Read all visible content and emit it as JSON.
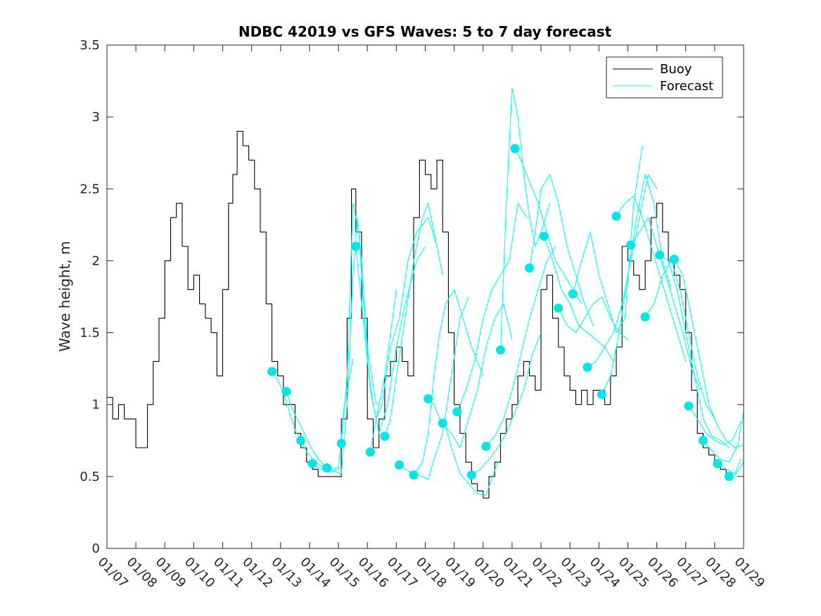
{
  "chart_data": {
    "type": "line",
    "title": "NDBC 42019 vs GFS Waves: 5 to 7 day forecast",
    "xlabel": "",
    "ylabel": "Wave height, m",
    "xlim": [
      7,
      29
    ],
    "ylim": [
      0,
      3.5
    ],
    "yticks": [
      0,
      0.5,
      1,
      1.5,
      2,
      2.5,
      3,
      3.5
    ],
    "ytick_labels": [
      "0",
      "0.5",
      "1",
      "1.5",
      "2",
      "2.5",
      "3",
      "3.5"
    ],
    "xticks": [
      7,
      8,
      9,
      10,
      11,
      12,
      13,
      14,
      15,
      16,
      17,
      18,
      19,
      20,
      21,
      22,
      23,
      24,
      25,
      26,
      27,
      28,
      29
    ],
    "xtick_labels": [
      "01/07",
      "01/08",
      "01/09",
      "01/10",
      "01/11",
      "01/12",
      "01/13",
      "01/14",
      "01/15",
      "01/16",
      "01/17",
      "01/18",
      "01/19",
      "01/20",
      "01/21",
      "01/22",
      "01/23",
      "01/24",
      "01/25",
      "01/26",
      "01/27",
      "01/28",
      "01/29"
    ],
    "legend": {
      "location": "top-right",
      "entries": [
        "Buoy",
        "Forecast"
      ]
    },
    "colors": {
      "buoy": "#000000",
      "forecast": "#00ffff",
      "marker": "#00e5e5",
      "axis": "#262626"
    },
    "series": [
      {
        "name": "Buoy",
        "x": [
          7.0,
          7.2,
          7.4,
          7.6,
          7.8,
          8.0,
          8.2,
          8.4,
          8.6,
          8.8,
          9.0,
          9.2,
          9.4,
          9.6,
          9.8,
          10.0,
          10.2,
          10.4,
          10.6,
          10.8,
          11.0,
          11.2,
          11.35,
          11.5,
          11.7,
          11.9,
          12.1,
          12.3,
          12.5,
          12.7,
          12.9,
          13.1,
          13.3,
          13.5,
          13.7,
          13.9,
          14.1,
          14.3,
          14.5,
          14.7,
          14.9,
          15.1,
          15.3,
          15.45,
          15.6,
          15.8,
          16.0,
          16.2,
          16.4,
          16.6,
          16.8,
          17.0,
          17.2,
          17.4,
          17.6,
          17.8,
          18.0,
          18.2,
          18.4,
          18.6,
          18.8,
          19.0,
          19.2,
          19.4,
          19.6,
          19.8,
          20.0,
          20.2,
          20.4,
          20.6,
          20.8,
          21.0,
          21.2,
          21.4,
          21.6,
          21.8,
          22.0,
          22.2,
          22.4,
          22.6,
          22.8,
          23.0,
          23.2,
          23.4,
          23.6,
          23.8,
          24.0,
          24.2,
          24.4,
          24.6,
          24.8,
          25.0,
          25.2,
          25.4,
          25.6,
          25.8,
          26.0,
          26.2,
          26.4,
          26.6,
          26.8,
          27.0,
          27.2,
          27.4,
          27.6,
          27.8,
          28.0,
          28.2,
          28.4
        ],
        "y": [
          1.05,
          0.9,
          1.0,
          0.9,
          0.9,
          0.7,
          0.7,
          1.0,
          1.3,
          1.6,
          2.0,
          2.3,
          2.4,
          2.1,
          1.8,
          1.9,
          1.7,
          1.6,
          1.5,
          1.2,
          1.8,
          2.4,
          2.6,
          2.9,
          2.8,
          2.7,
          2.5,
          2.2,
          1.7,
          1.3,
          1.2,
          1.0,
          1.0,
          0.8,
          0.7,
          0.6,
          0.55,
          0.5,
          0.5,
          0.5,
          0.5,
          0.9,
          1.6,
          2.5,
          2.2,
          1.6,
          0.9,
          0.7,
          0.9,
          1.2,
          1.3,
          1.4,
          1.3,
          1.2,
          2.3,
          2.7,
          2.6,
          2.5,
          2.7,
          2.2,
          1.5,
          1.0,
          0.8,
          0.6,
          0.45,
          0.4,
          0.35,
          0.5,
          0.6,
          0.8,
          0.9,
          1.0,
          1.2,
          1.3,
          1.2,
          1.1,
          1.8,
          1.9,
          1.6,
          1.4,
          1.2,
          1.1,
          1.0,
          1.1,
          1.0,
          1.1,
          1.1,
          1.0,
          1.2,
          1.4,
          2.1,
          2.0,
          1.9,
          1.8,
          2.0,
          2.3,
          2.4,
          2.2,
          2.0,
          1.9,
          1.8,
          1.5,
          1.1,
          0.8,
          0.7,
          0.65,
          0.6,
          0.55,
          0.5
        ]
      },
      {
        "name": "Forecast",
        "x": [
          12.7,
          12.9,
          13.1,
          13.3,
          13.5,
          13.8
        ],
        "y": [
          1.23,
          1.17,
          1.08,
          0.95,
          0.82,
          0.72
        ]
      },
      {
        "name": "Forecast",
        "x": [
          13.2,
          13.4,
          13.7,
          14.0,
          14.3,
          14.6
        ],
        "y": [
          1.09,
          0.97,
          0.85,
          0.72,
          0.62,
          0.56
        ]
      },
      {
        "name": "Forecast",
        "x": [
          13.7,
          13.9,
          14.2,
          14.5,
          14.8,
          15.1
        ],
        "y": [
          0.75,
          0.67,
          0.6,
          0.56,
          0.55,
          0.57
        ]
      },
      {
        "name": "Forecast",
        "x": [
          14.1,
          14.4,
          14.7,
          15.0,
          15.2,
          15.5
        ],
        "y": [
          0.59,
          0.55,
          0.53,
          0.55,
          1.0,
          1.32
        ]
      },
      {
        "name": "Forecast",
        "x": [
          14.6,
          14.8,
          15.1,
          15.3,
          15.5,
          15.65,
          15.8,
          16.0,
          16.3
        ],
        "y": [
          0.56,
          0.54,
          0.52,
          1.0,
          1.9,
          2.3,
          2.0,
          1.4,
          1.0
        ]
      },
      {
        "name": "Forecast",
        "x": [
          15.1,
          15.3,
          15.5,
          15.7,
          15.9,
          16.1,
          16.3,
          16.6,
          17.0
        ],
        "y": [
          0.73,
          1.2,
          2.4,
          2.2,
          1.6,
          1.1,
          0.9,
          1.2,
          1.8
        ]
      },
      {
        "name": "Forecast",
        "x": [
          15.6,
          15.8,
          16.0,
          16.2,
          16.4,
          16.7,
          17.0,
          17.3,
          17.7,
          18.0
        ],
        "y": [
          2.1,
          1.7,
          1.3,
          1.0,
          0.8,
          1.0,
          1.4,
          1.7,
          2.0,
          2.1
        ]
      },
      {
        "name": "Forecast",
        "x": [
          16.1,
          16.3,
          16.5,
          16.8,
          17.1,
          17.4,
          17.7,
          18.1,
          18.4
        ],
        "y": [
          0.67,
          0.9,
          1.0,
          1.4,
          1.6,
          2.0,
          2.2,
          2.3,
          2.1
        ]
      },
      {
        "name": "Forecast",
        "x": [
          16.6,
          16.8,
          17.0,
          17.3,
          17.6,
          17.9,
          18.1,
          18.3,
          18.6
        ],
        "y": [
          0.78,
          0.9,
          1.2,
          1.6,
          2.0,
          2.3,
          2.4,
          2.2,
          1.9
        ]
      },
      {
        "name": "Forecast",
        "x": [
          17.1,
          17.3,
          17.6,
          17.9,
          18.1,
          18.3,
          18.6,
          18.9,
          19.2,
          19.5
        ],
        "y": [
          0.58,
          0.55,
          0.52,
          0.5,
          0.48,
          0.62,
          0.8,
          1.2,
          1.6,
          1.75
        ]
      },
      {
        "name": "Forecast",
        "x": [
          17.6,
          17.9,
          18.1,
          18.3,
          18.5,
          18.7,
          19.0,
          19.3,
          19.6,
          20.0
        ],
        "y": [
          0.51,
          0.6,
          0.8,
          1.2,
          1.5,
          1.7,
          1.8,
          1.6,
          1.4,
          1.2
        ]
      },
      {
        "name": "Forecast",
        "x": [
          18.1,
          18.3,
          18.5,
          18.7,
          18.9,
          19.2,
          19.5,
          19.8,
          20.1,
          20.5
        ],
        "y": [
          1.04,
          1.0,
          0.9,
          0.85,
          0.7,
          0.52,
          0.45,
          0.38,
          0.37,
          0.6
        ]
      },
      {
        "name": "Forecast",
        "x": [
          18.6,
          18.9,
          19.2,
          19.5,
          19.8,
          20.1,
          20.4,
          20.7,
          21.0
        ],
        "y": [
          0.87,
          0.8,
          0.7,
          0.9,
          1.1,
          1.4,
          1.6,
          1.7,
          1.45
        ]
      },
      {
        "name": "Forecast",
        "x": [
          19.1,
          19.4,
          19.7,
          20.0,
          20.3,
          20.6,
          20.9,
          21.2,
          21.5
        ],
        "y": [
          0.95,
          1.1,
          1.3,
          1.6,
          1.8,
          1.9,
          2.0,
          2.4,
          2.3
        ]
      },
      {
        "name": "Forecast",
        "x": [
          19.6,
          19.9,
          20.2,
          20.5,
          20.8,
          21.1,
          21.4,
          21.7,
          22.0
        ],
        "y": [
          0.51,
          0.55,
          0.62,
          0.7,
          0.8,
          0.95,
          1.1,
          1.35,
          1.5
        ]
      },
      {
        "name": "Forecast",
        "x": [
          20.1,
          20.4,
          20.7,
          21.0,
          21.3,
          21.6,
          21.9,
          22.2,
          22.5
        ],
        "y": [
          0.71,
          0.78,
          0.9,
          1.1,
          1.35,
          1.6,
          1.8,
          2.0,
          2.1
        ]
      },
      {
        "name": "Forecast",
        "x": [
          20.6,
          20.8,
          21.0,
          21.2,
          21.4,
          21.6,
          21.8,
          22.0,
          22.3
        ],
        "y": [
          1.38,
          2.4,
          3.2,
          3.0,
          2.6,
          2.3,
          2.1,
          2.2,
          2.4
        ]
      },
      {
        "name": "Forecast",
        "x": [
          21.1,
          21.3,
          21.6,
          21.9,
          22.2,
          22.5,
          22.8,
          23.1,
          23.4
        ],
        "y": [
          2.78,
          2.7,
          2.55,
          2.4,
          2.2,
          2.0,
          1.9,
          1.8,
          1.7
        ]
      },
      {
        "name": "Forecast",
        "x": [
          21.6,
          21.8,
          22.0,
          22.3,
          22.6,
          22.9,
          23.2,
          23.5,
          23.8
        ],
        "y": [
          1.95,
          2.2,
          2.5,
          2.6,
          2.4,
          2.1,
          1.9,
          1.7,
          1.55
        ]
      },
      {
        "name": "Forecast",
        "x": [
          22.1,
          22.4,
          22.7,
          23.0,
          23.3,
          23.6,
          23.9,
          24.2,
          24.5
        ],
        "y": [
          2.17,
          2.0,
          1.8,
          1.7,
          1.55,
          1.5,
          1.45,
          1.4,
          1.3
        ]
      },
      {
        "name": "Forecast",
        "x": [
          22.6,
          22.9,
          23.2,
          23.5,
          23.8,
          24.1,
          24.4,
          24.7,
          25.0
        ],
        "y": [
          1.67,
          1.55,
          1.5,
          1.6,
          1.7,
          1.75,
          1.6,
          1.5,
          1.45
        ]
      },
      {
        "name": "Forecast",
        "x": [
          23.1,
          23.4,
          23.7,
          24.0,
          24.3,
          24.6,
          24.9,
          25.2,
          25.5
        ],
        "y": [
          1.77,
          2.0,
          2.2,
          1.9,
          1.7,
          1.5,
          1.6,
          2.4,
          2.8
        ]
      },
      {
        "name": "Forecast",
        "x": [
          23.6,
          23.9,
          24.2,
          24.5,
          24.8,
          25.1,
          25.4,
          25.7,
          26.0
        ],
        "y": [
          1.26,
          1.3,
          1.4,
          1.5,
          1.7,
          2.0,
          2.3,
          2.6,
          2.5
        ]
      },
      {
        "name": "Forecast",
        "x": [
          24.1,
          24.4,
          24.7,
          25.0,
          25.3,
          25.6,
          25.9,
          26.2,
          26.5
        ],
        "y": [
          1.07,
          1.2,
          1.5,
          1.9,
          2.3,
          2.6,
          2.4,
          2.0,
          1.8
        ]
      },
      {
        "name": "Forecast",
        "x": [
          24.6,
          24.9,
          25.2,
          25.5,
          25.8,
          26.1,
          26.4,
          26.7,
          27.0
        ],
        "y": [
          2.31,
          2.4,
          2.45,
          2.3,
          2.1,
          1.9,
          1.7,
          1.5,
          1.3
        ]
      },
      {
        "name": "Forecast",
        "x": [
          25.1,
          25.4,
          25.7,
          26.0,
          26.3,
          26.6,
          26.9,
          27.2,
          27.5
        ],
        "y": [
          2.11,
          2.2,
          2.3,
          2.1,
          1.9,
          1.7,
          1.5,
          1.25,
          1.1
        ]
      },
      {
        "name": "Forecast",
        "x": [
          25.6,
          25.9,
          26.2,
          26.5,
          26.8,
          27.1,
          27.4,
          27.7,
          28.0
        ],
        "y": [
          1.61,
          1.7,
          1.9,
          2.0,
          1.8,
          1.5,
          1.2,
          1.0,
          0.9
        ]
      },
      {
        "name": "Forecast",
        "x": [
          26.1,
          26.4,
          26.7,
          27.0,
          27.3,
          27.6,
          27.9,
          28.2,
          28.5
        ],
        "y": [
          2.04,
          2.0,
          1.8,
          1.5,
          1.2,
          0.9,
          0.78,
          0.75,
          0.7
        ]
      },
      {
        "name": "Forecast",
        "x": [
          26.6,
          26.9,
          27.2,
          27.5,
          27.8,
          28.1,
          28.4,
          28.7,
          29.0
        ],
        "y": [
          2.01,
          1.9,
          1.6,
          1.3,
          1.0,
          0.85,
          0.75,
          0.7,
          0.72
        ]
      },
      {
        "name": "Forecast",
        "x": [
          27.1,
          27.4,
          27.7,
          28.0,
          28.3,
          28.6,
          28.9
        ],
        "y": [
          0.99,
          0.9,
          0.8,
          0.75,
          0.72,
          0.75,
          0.88
        ]
      },
      {
        "name": "Forecast",
        "x": [
          27.6,
          27.9,
          28.2,
          28.5,
          28.8,
          29.0
        ],
        "y": [
          0.75,
          0.68,
          0.62,
          0.6,
          0.72,
          0.95
        ]
      },
      {
        "name": "Forecast",
        "x": [
          28.1,
          28.4,
          28.7,
          28.9
        ],
        "y": [
          0.59,
          0.55,
          0.52,
          0.62
        ]
      },
      {
        "name": "Forecast",
        "x": [
          28.5,
          28.7,
          28.85,
          29.0
        ],
        "y": [
          0.5,
          0.51,
          0.55,
          0.6
        ]
      }
    ],
    "markers": {
      "name": "Forecast start",
      "x": [
        12.7,
        13.2,
        13.7,
        14.1,
        14.6,
        15.1,
        15.6,
        16.1,
        16.6,
        17.1,
        17.6,
        18.1,
        18.6,
        19.1,
        19.6,
        20.1,
        20.6,
        21.1,
        21.6,
        22.1,
        22.6,
        23.1,
        23.6,
        24.1,
        24.6,
        25.1,
        25.6,
        26.1,
        26.6,
        27.1,
        27.6,
        28.1,
        28.5
      ],
      "y": [
        1.23,
        1.09,
        0.75,
        0.59,
        0.56,
        0.73,
        2.1,
        0.67,
        0.78,
        0.58,
        0.51,
        1.04,
        0.87,
        0.95,
        0.51,
        0.71,
        1.38,
        2.78,
        1.95,
        2.17,
        1.67,
        1.77,
        1.26,
        1.07,
        2.31,
        2.11,
        1.61,
        2.04,
        2.01,
        0.99,
        0.75,
        0.59,
        0.5
      ]
    }
  }
}
